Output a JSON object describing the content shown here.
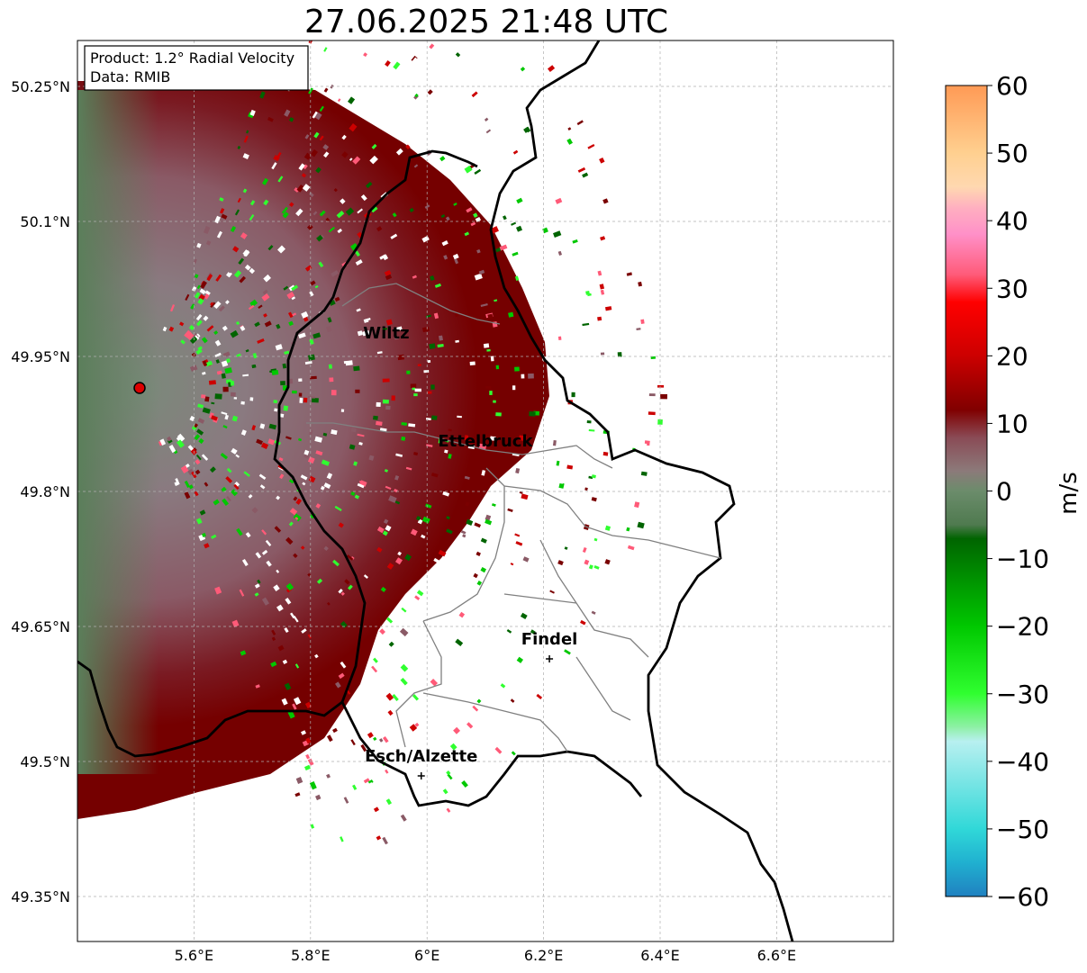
{
  "title": "27.06.2025 21:48 UTC",
  "info_box": {
    "product": "Product: 1.2° Radial Velocity",
    "source": "Data: RMIB"
  },
  "map": {
    "lon_range": [
      5.4,
      6.8
    ],
    "lat_range": [
      49.3,
      50.3
    ],
    "x_ticks": [
      {
        "value": 5.6,
        "label": "5.6°E"
      },
      {
        "value": 5.8,
        "label": "5.8°E"
      },
      {
        "value": 6.0,
        "label": "6°E"
      },
      {
        "value": 6.2,
        "label": "6.2°E"
      },
      {
        "value": 6.4,
        "label": "6.4°E"
      },
      {
        "value": 6.6,
        "label": "6.6°E"
      }
    ],
    "y_ticks": [
      {
        "value": 50.25,
        "label": "50.25°N"
      },
      {
        "value": 50.1,
        "label": "50.1°N"
      },
      {
        "value": 49.95,
        "label": "49.95°N"
      },
      {
        "value": 49.8,
        "label": "49.8°N"
      },
      {
        "value": 49.65,
        "label": "49.65°N"
      },
      {
        "value": 49.5,
        "label": "49.5°N"
      },
      {
        "value": 49.35,
        "label": "49.35°N"
      }
    ],
    "cities": [
      {
        "name": "Wiltz",
        "lon": 5.93,
        "lat": 49.97
      },
      {
        "name": "Ettelbruck",
        "lon": 6.1,
        "lat": 49.85
      },
      {
        "name": "Findel",
        "lon": 6.21,
        "lat": 49.63
      },
      {
        "name": "Esch/Alzette",
        "lon": 5.99,
        "lat": 49.5
      }
    ],
    "radar_site": {
      "lon": 5.505,
      "lat": 49.915
    },
    "grid": true
  },
  "colorbar": {
    "unit": "m/s",
    "min": -60,
    "max": 60,
    "ticks": [
      {
        "value": 60,
        "label": "60"
      },
      {
        "value": 50,
        "label": "50"
      },
      {
        "value": 40,
        "label": "40"
      },
      {
        "value": 30,
        "label": "30"
      },
      {
        "value": 20,
        "label": "20"
      },
      {
        "value": 10,
        "label": "10"
      },
      {
        "value": 0,
        "label": "0"
      },
      {
        "value": -10,
        "label": "−10"
      },
      {
        "value": -20,
        "label": "−20"
      },
      {
        "value": -30,
        "label": "−30"
      },
      {
        "value": -40,
        "label": "−40"
      },
      {
        "value": -50,
        "label": "−50"
      },
      {
        "value": -60,
        "label": "−60"
      }
    ],
    "stops": [
      {
        "v": 60,
        "color": "#ff9a55"
      },
      {
        "v": 50,
        "color": "#ffd090"
      },
      {
        "v": 45,
        "color": "#ffd8b0"
      },
      {
        "v": 42,
        "color": "#ffb0c0"
      },
      {
        "v": 38,
        "color": "#ff90c8"
      },
      {
        "v": 32,
        "color": "#ff5a78"
      },
      {
        "v": 28,
        "color": "#ff0000"
      },
      {
        "v": 20,
        "color": "#cc0000"
      },
      {
        "v": 12,
        "color": "#800000"
      },
      {
        "v": 8,
        "color": "#8a4a55"
      },
      {
        "v": 3,
        "color": "#8c7a7a"
      },
      {
        "v": 0,
        "color": "#6b8c6b"
      },
      {
        "v": -5,
        "color": "#4f7a4f"
      },
      {
        "v": -7,
        "color": "#006400"
      },
      {
        "v": -20,
        "color": "#00c800"
      },
      {
        "v": -30,
        "color": "#30ff30"
      },
      {
        "v": -35,
        "color": "#90f0a8"
      },
      {
        "v": -37,
        "color": "#b8f0f0"
      },
      {
        "v": -50,
        "color": "#30d8d8"
      },
      {
        "v": -55,
        "color": "#20b0d0"
      },
      {
        "v": -60,
        "color": "#2080c0"
      }
    ]
  }
}
